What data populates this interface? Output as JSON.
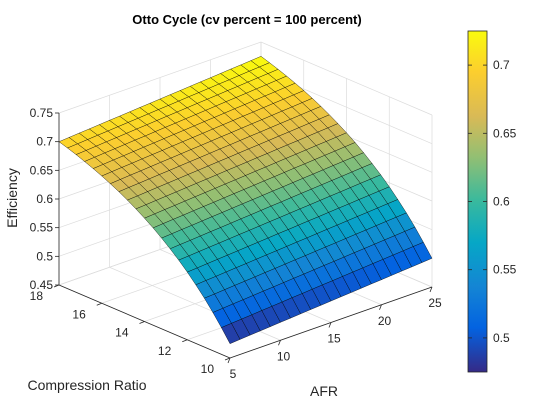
{
  "chart_data": {
    "type": "surface3d",
    "title": "Otto Cycle (cv percent = 100 percent)",
    "xlabel": "AFR",
    "ylabel": "Compression Ratio",
    "zlabel": "Efficiency",
    "x": {
      "min": 5,
      "max": 25,
      "ticks": [
        "5",
        "10",
        "15",
        "20",
        "25"
      ],
      "ticks_values": [
        5,
        10,
        15,
        20,
        25
      ]
    },
    "y": {
      "min": 10,
      "max": 18,
      "ticks": [
        "10",
        "12",
        "14",
        "16",
        "18"
      ],
      "ticks_values": [
        10,
        12,
        14,
        16,
        18
      ]
    },
    "z": {
      "min": 0.45,
      "max": 0.75,
      "ticks": [
        "0.45",
        "0.5",
        "0.55",
        "0.6",
        "0.65",
        "0.7",
        "0.75"
      ],
      "ticks_values": [
        0.45,
        0.5,
        0.55,
        0.6,
        0.65,
        0.7,
        0.75
      ]
    },
    "grid": {
      "x_count": 21,
      "y_count": 21
    },
    "surface": {
      "description": "efficiency increases with compression ratio and slightly with AFR",
      "z_at_x5_y10": 0.475,
      "z_at_x25_y10": 0.5,
      "z_at_x5_y18": 0.7,
      "z_at_x25_y18": 0.725
    },
    "colorbar": {
      "min": 0.475,
      "max": 0.725,
      "ticks": [
        "0.5",
        "0.55",
        "0.6",
        "0.65",
        "0.7"
      ],
      "ticks_values": [
        0.5,
        0.55,
        0.6,
        0.65,
        0.7
      ],
      "colormap": "parula"
    },
    "grid_on": true
  }
}
